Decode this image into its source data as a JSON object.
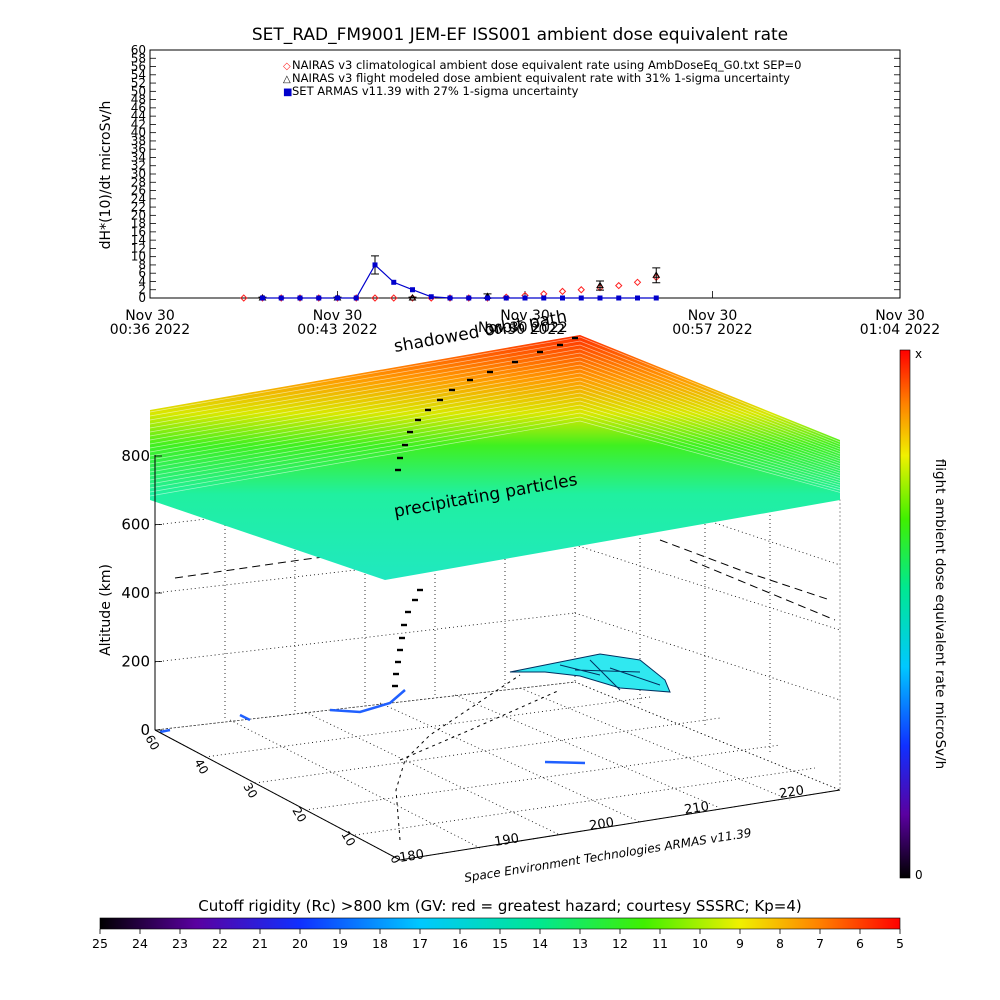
{
  "title": "SET_RAD_FM9001  JEM-EF ISS001 ambient dose equivalent rate",
  "colors": {
    "nairas_clim": "#ff2020",
    "nairas_flight": "#000000",
    "armas": "#0000cc"
  },
  "chart_data": [
    {
      "type": "line",
      "name": "dose-rate-time-series",
      "ylabel": "dH*(10)/dt microSv/h",
      "ylim": [
        0,
        60
      ],
      "ytick_step": 2,
      "x_ticks": [
        {
          "l1": "Nov 30",
          "l2": "00:36 2022"
        },
        {
          "l1": "Nov 30",
          "l2": "00:43 2022"
        },
        {
          "l1": "Nov 30",
          "l2": "00:50 2022"
        },
        {
          "l1": "Nov 30",
          "l2": "00:57 2022"
        },
        {
          "l1": "Nov 30",
          "l2": "01:04 2022"
        }
      ],
      "xlim_minutes": [
        0,
        28
      ],
      "legend": [
        "NAIRAS v3 climatological ambient dose equivalent rate using AmbDoseEq_G0.txt SEP=0",
        "NAIRAS v3 flight modeled dose ambient equivalent rate with 31% 1-sigma uncertainty",
        "SET ARMAS v11.39 with 27% 1-sigma uncertainty"
      ],
      "legend_position": "top",
      "series": [
        {
          "name": "NAIRAS v3 climatological ambient dose equivalent rate using AmbDoseEq_G0.txt SEP=0",
          "marker": "diamond",
          "x": [
            3.5,
            4.2,
            4.9,
            5.6,
            6.3,
            7.0,
            7.7,
            8.4,
            9.1,
            9.8,
            10.5,
            11.2,
            11.9,
            12.6,
            13.3,
            14.0,
            14.7,
            15.4,
            16.1,
            16.8,
            17.5,
            18.2,
            18.9
          ],
          "y": [
            0,
            0,
            0,
            0,
            0,
            0,
            0,
            0,
            0,
            0,
            0,
            0,
            0,
            0,
            0.2,
            0.6,
            1.0,
            1.6,
            2.0,
            2.5,
            3.0,
            3.8,
            5.0
          ]
        },
        {
          "name": "NAIRAS v3 flight modeled dose ambient equivalent rate with 31% 1-sigma uncertainty",
          "marker": "triangle",
          "x": [
            4.2,
            7.0,
            9.8,
            12.6,
            16.8,
            18.9
          ],
          "y": [
            0,
            0,
            0,
            0.4,
            3.0,
            5.5
          ],
          "err": [
            0.2,
            0.2,
            0.2,
            0.6,
            1.1,
            1.8
          ]
        },
        {
          "name": "SET ARMAS v11.39 with 27% 1-sigma uncertainty",
          "marker": "square",
          "x": [
            4.2,
            4.9,
            5.6,
            6.3,
            7.0,
            7.7,
            8.4,
            9.1,
            9.8,
            10.5,
            11.2,
            11.9,
            12.6,
            13.3,
            14.0,
            14.7,
            15.4,
            16.1,
            16.8,
            17.5,
            18.2,
            18.9
          ],
          "y": [
            0,
            0,
            0,
            0,
            0,
            0,
            8.0,
            3.8,
            2.0,
            0.3,
            0,
            0,
            0,
            0,
            0,
            0,
            0,
            0,
            0,
            0,
            0,
            0
          ],
          "err": [
            0,
            0,
            0,
            0,
            0,
            0,
            2.2,
            0,
            0,
            0,
            0,
            0,
            0,
            0,
            0,
            0,
            0,
            0,
            0,
            0,
            0,
            0
          ]
        }
      ]
    },
    {
      "type": "surface",
      "name": "3d-altitude-track",
      "zlabel": "Altitude (km)",
      "z_ticks": [
        "0",
        "200",
        "400",
        "600",
        "800"
      ],
      "lat_ticks": [
        "60",
        "40",
        "30",
        "20",
        "10",
        "0"
      ],
      "lon_ticks": [
        "180",
        "190",
        "200",
        "210",
        "220"
      ],
      "annotations": {
        "shadowed": "shadowed orbit path",
        "date_overlay": "Nov 30 2022",
        "precip": "precipitating particles",
        "credit": "Space Environment Technologies ARMAS v11.39"
      }
    },
    {
      "type": "colorbar",
      "name": "dose-colorbar",
      "label": "flight ambient dose equivalent rate microSv/h",
      "max_label": "x",
      "min_label": "0"
    },
    {
      "type": "colorbar",
      "name": "cutoff-rigidity-colorbar",
      "label": "Cutoff rigidity (Rc) >800 km (GV: red = greatest hazard; courtesy SSSRC; Kp=4)",
      "ticks": [
        "25",
        "24",
        "23",
        "22",
        "21",
        "20",
        "19",
        "18",
        "17",
        "16",
        "15",
        "14",
        "13",
        "12",
        "11",
        "10",
        "9",
        "8",
        "7",
        "6",
        "5"
      ]
    }
  ]
}
